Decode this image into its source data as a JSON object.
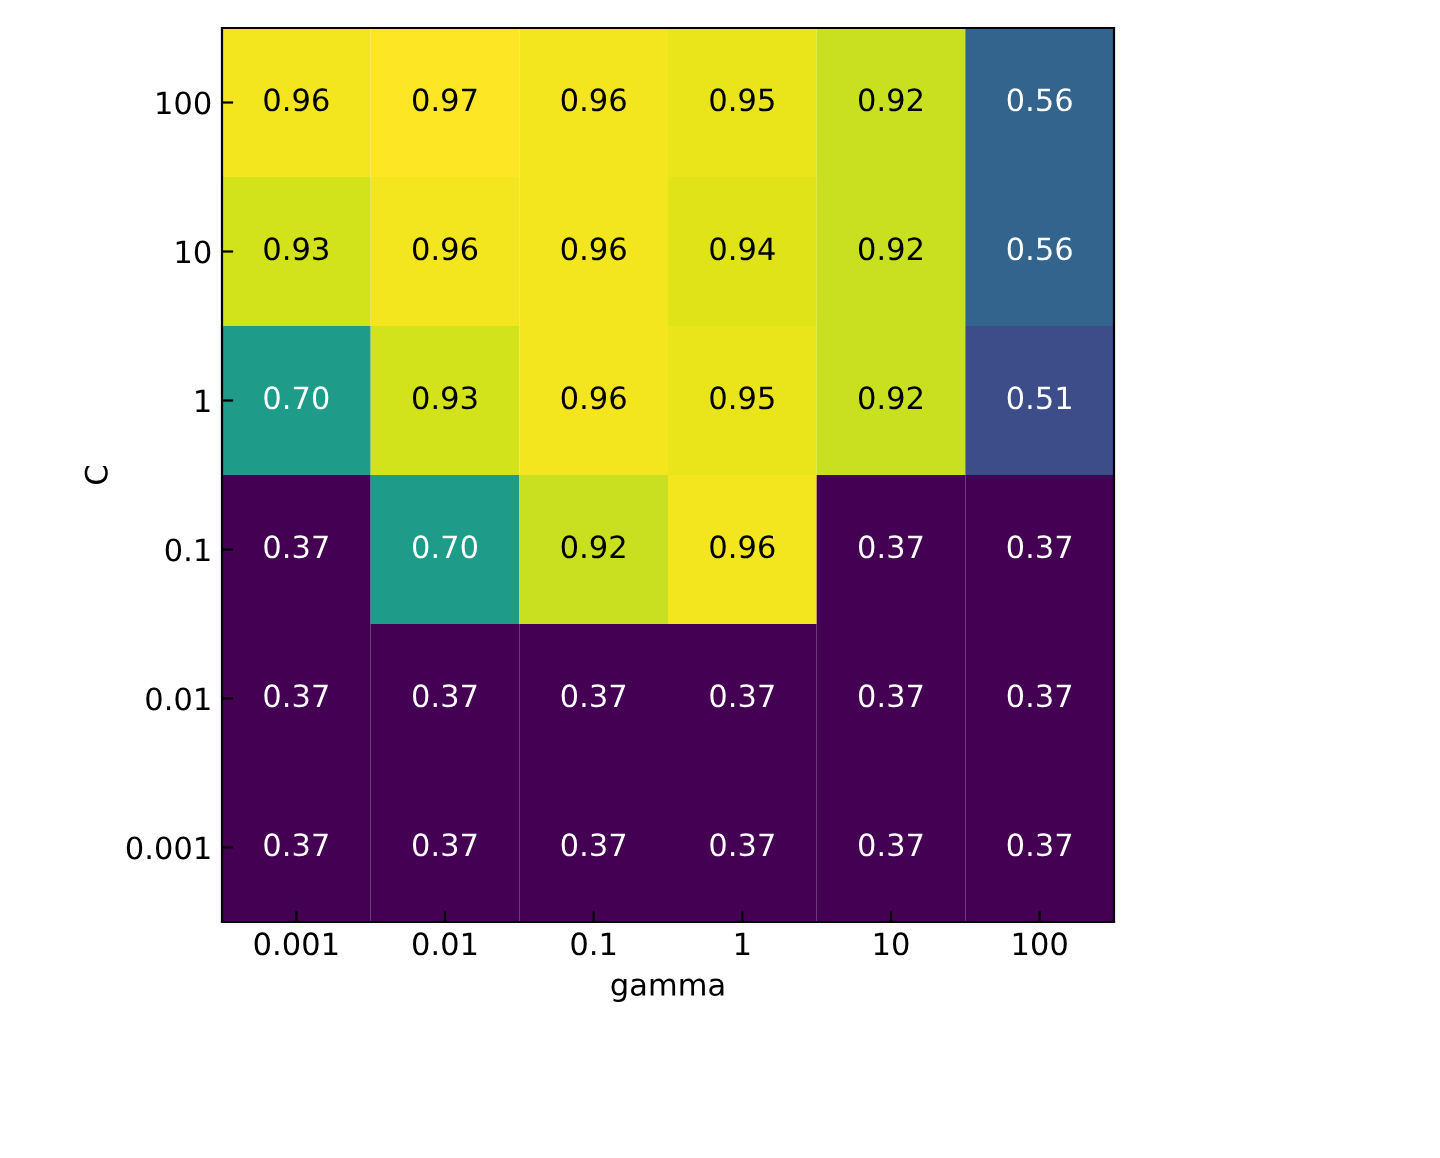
{
  "chart_data": {
    "type": "heatmap",
    "xlabel": "gamma",
    "ylabel": "C",
    "categories": [
      "0.001",
      "0.01",
      "0.1",
      "1",
      "10",
      "100"
    ],
    "y_categories": [
      "100",
      "10",
      "1",
      "0.1",
      "0.01",
      "0.001"
    ],
    "cells": [
      [
        0.96,
        0.97,
        0.96,
        0.95,
        0.92,
        0.56
      ],
      [
        0.93,
        0.96,
        0.96,
        0.94,
        0.92,
        0.56
      ],
      [
        0.7,
        0.93,
        0.96,
        0.95,
        0.92,
        0.51
      ],
      [
        0.37,
        0.7,
        0.92,
        0.96,
        0.37,
        0.37
      ],
      [
        0.37,
        0.37,
        0.37,
        0.37,
        0.37,
        0.37
      ],
      [
        0.37,
        0.37,
        0.37,
        0.37,
        0.37,
        0.37
      ]
    ],
    "cell_labels": [
      [
        "0.96",
        "0.97",
        "0.96",
        "0.95",
        "0.92",
        "0.56"
      ],
      [
        "0.93",
        "0.96",
        "0.96",
        "0.94",
        "0.92",
        "0.56"
      ],
      [
        "0.70",
        "0.93",
        "0.96",
        "0.95",
        "0.92",
        "0.51"
      ],
      [
        "0.37",
        "0.70",
        "0.92",
        "0.96",
        "0.37",
        "0.37"
      ],
      [
        "0.37",
        "0.37",
        "0.37",
        "0.37",
        "0.37",
        "0.37"
      ],
      [
        "0.37",
        "0.37",
        "0.37",
        "0.37",
        "0.37",
        "0.37"
      ]
    ]
  }
}
